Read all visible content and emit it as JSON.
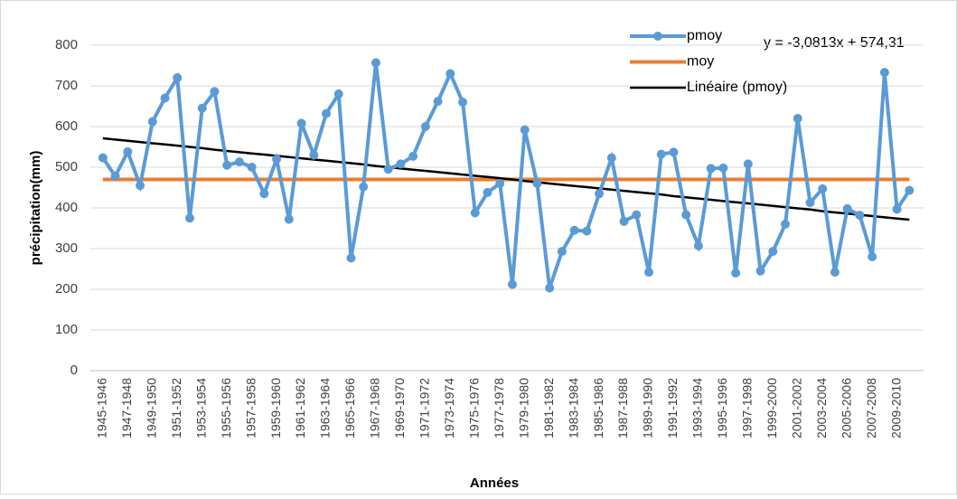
{
  "chart_data": {
    "type": "line",
    "annotation": "y = -3,0813x + 574,31",
    "x_label": "Années",
    "y_label": "précipitation(mm)",
    "categories": [
      "1945-1946",
      null,
      "1947-1948",
      null,
      "1949-1950",
      null,
      "1951-1952",
      null,
      "1953-1954",
      null,
      "1955-1956",
      null,
      "1957-1958",
      null,
      "1959-1960",
      null,
      "1961-1962",
      null,
      "1963-1964",
      null,
      "1965-1966",
      null,
      "1967-1968",
      null,
      "1969-1970",
      null,
      "1971-1972",
      null,
      "1973-1974",
      null,
      "1975-1976",
      null,
      "1977-1978",
      null,
      "1979-1980",
      null,
      "1981-1982",
      null,
      "1983-1984",
      null,
      "1985-1986",
      null,
      "1987-1988",
      null,
      "1989-1990",
      null,
      "1991-1992",
      null,
      "1993-1994",
      null,
      "1995-1996",
      null,
      "1997-1998",
      null,
      "1999-2000",
      null,
      "2001-2002",
      null,
      "2003-2004",
      null,
      "2005-2006",
      null,
      "2007-2008",
      null,
      "2009-2010",
      null
    ],
    "series": [
      {
        "name": "pmoy",
        "color": "#5b9bd5",
        "markers": true,
        "values": [
          523,
          478,
          538,
          455,
          612,
          670,
          720,
          375,
          645,
          686,
          505,
          513,
          500,
          435,
          520,
          372,
          608,
          530,
          632,
          680,
          277,
          452,
          757,
          495,
          508,
          527,
          600,
          662,
          730,
          660,
          388,
          438,
          460,
          212,
          592,
          460,
          203,
          293,
          345,
          343,
          435,
          523,
          367,
          383,
          242,
          532,
          537,
          383,
          307,
          497,
          498,
          240,
          508,
          245,
          293,
          360,
          620,
          413,
          447,
          242,
          398,
          382,
          280,
          733,
          397,
          443
        ]
      },
      {
        "name": "moy",
        "color": "#ed7d31",
        "markers": false,
        "values": [
          470,
          470,
          470,
          470,
          470,
          470,
          470,
          470,
          470,
          470,
          470,
          470,
          470,
          470,
          470,
          470,
          470,
          470,
          470,
          470,
          470,
          470,
          470,
          470,
          470,
          470,
          470,
          470,
          470,
          470,
          470,
          470,
          470,
          470,
          470,
          470,
          470,
          470,
          470,
          470,
          470,
          470,
          470,
          470,
          470,
          470,
          470,
          470,
          470,
          470,
          470,
          470,
          470,
          470,
          470,
          470,
          470,
          470,
          470,
          470,
          470,
          470,
          470,
          470,
          470,
          470
        ]
      },
      {
        "name": "Linéaire (pmoy)",
        "color": "#000000",
        "markers": false,
        "values": [
          571,
          568,
          565,
          562,
          559,
          556,
          553,
          550,
          547,
          543,
          540,
          537,
          534,
          531,
          528,
          525,
          522,
          519,
          516,
          513,
          510,
          507,
          503,
          500,
          497,
          494,
          491,
          488,
          485,
          482,
          479,
          476,
          473,
          470,
          466,
          463,
          460,
          457,
          454,
          451,
          448,
          445,
          442,
          439,
          436,
          433,
          429,
          426,
          423,
          420,
          417,
          414,
          411,
          408,
          405,
          402,
          399,
          396,
          392,
          389,
          386,
          383,
          380,
          377,
          374,
          371
        ]
      }
    ],
    "ylim": [
      0,
      800
    ],
    "yticks": [
      0,
      100,
      200,
      300,
      400,
      500,
      600,
      700,
      800
    ],
    "grid": true,
    "legend": "top-right"
  }
}
